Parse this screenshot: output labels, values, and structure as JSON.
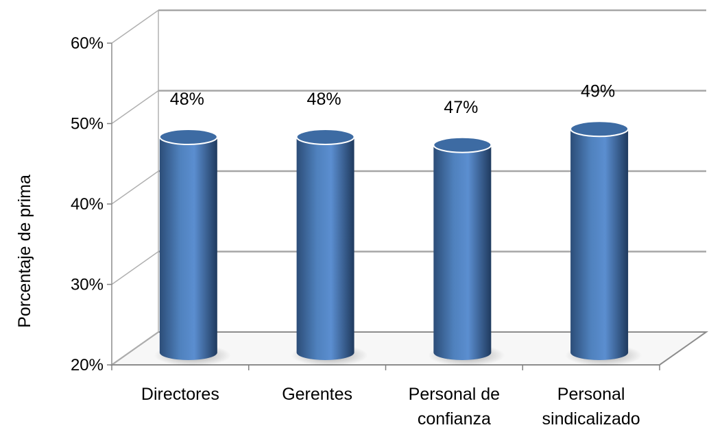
{
  "chart_data": {
    "type": "bar",
    "style": "3d-cylinder",
    "categories": [
      [
        "Directores"
      ],
      [
        "Gerentes"
      ],
      [
        "Personal de",
        "confianza"
      ],
      [
        "Personal",
        "sindicalizado"
      ]
    ],
    "values": [
      48,
      48,
      47,
      49
    ],
    "data_labels": [
      "48%",
      "48%",
      "47%",
      "49%"
    ],
    "ylabel": "Porcentaje de prima",
    "ylim": [
      20,
      60
    ],
    "yticks": [
      20,
      30,
      40,
      50,
      60
    ],
    "ytick_labels": [
      "20%",
      "30%",
      "40%",
      "50%",
      "60%"
    ],
    "grid": true,
    "bar_color": "#4f81bd"
  }
}
